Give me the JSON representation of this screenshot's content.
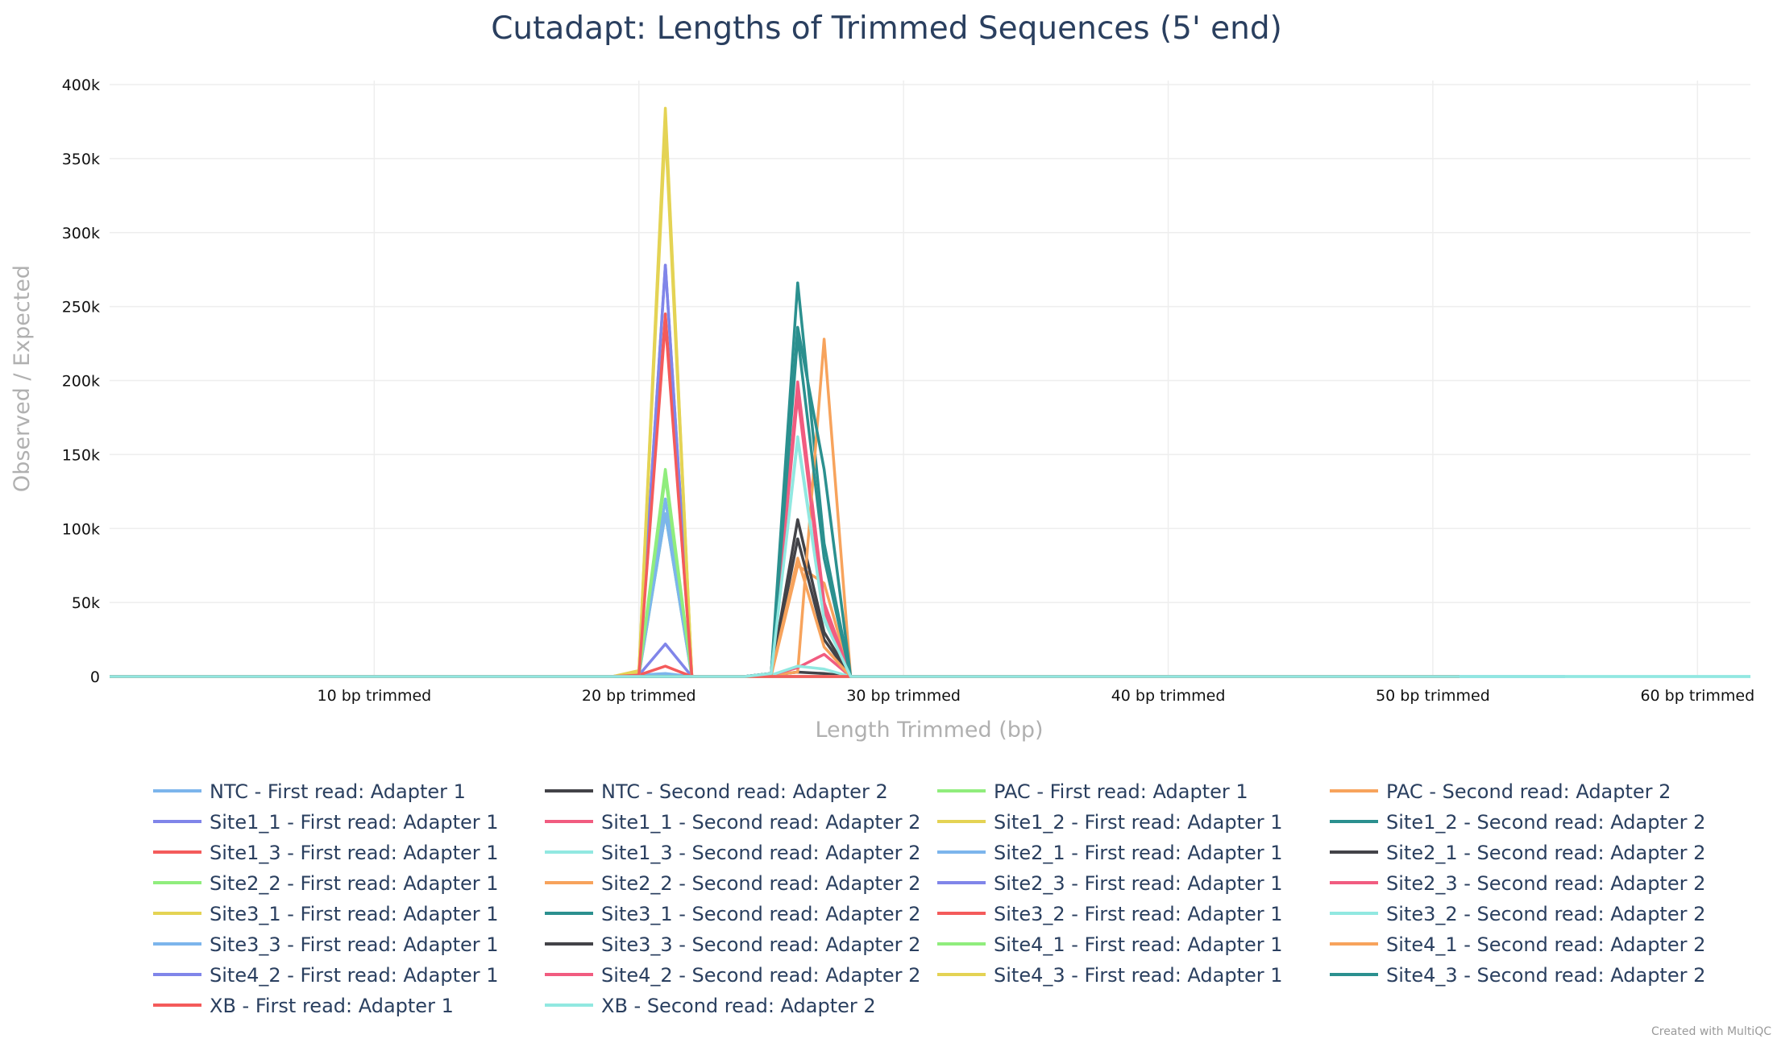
{
  "chart_data": {
    "type": "line",
    "title": "Cutadapt: Lengths of Trimmed Sequences (5' end)",
    "xlabel": "Length Trimmed (bp)",
    "ylabel": "Observed / Expected",
    "xlim": [
      0,
      62
    ],
    "ylim": [
      0,
      400000
    ],
    "x_ticks": [
      10,
      20,
      30,
      40,
      50,
      60
    ],
    "x_tick_labels": [
      "10 bp trimmed",
      "20 bp trimmed",
      "30 bp trimmed",
      "40 bp trimmed",
      "50 bp trimmed",
      "60 bp trimmed"
    ],
    "y_ticks": [
      0,
      50000,
      100000,
      150000,
      200000,
      250000,
      300000,
      350000,
      400000
    ],
    "y_tick_labels": [
      "0",
      "50k",
      "100k",
      "150k",
      "200k",
      "250k",
      "300k",
      "350k",
      "400k"
    ],
    "grid": true,
    "legend_position": "bottom",
    "credit": "Created with MultiQC",
    "series": [
      {
        "name": "NTC - First read: Adapter 1",
        "color": "#7cb5ec",
        "points": [
          [
            0,
            0
          ],
          [
            19,
            0
          ],
          [
            20,
            1000
          ],
          [
            21,
            2000
          ],
          [
            22,
            0
          ],
          [
            51,
            0
          ]
        ]
      },
      {
        "name": "NTC - Second read: Adapter 2",
        "color": "#434348",
        "points": [
          [
            0,
            0
          ],
          [
            24,
            0
          ],
          [
            25,
            1000
          ],
          [
            26,
            3000
          ],
          [
            27,
            2000
          ],
          [
            28,
            0
          ],
          [
            51,
            0
          ]
        ]
      },
      {
        "name": "PAC - First read: Adapter 1",
        "color": "#90ed7d",
        "points": [
          [
            0,
            0
          ],
          [
            19,
            0
          ],
          [
            20,
            2000
          ],
          [
            21,
            140000
          ],
          [
            22,
            0
          ],
          [
            51,
            0
          ]
        ]
      },
      {
        "name": "PAC - Second read: Adapter 2",
        "color": "#f7a35c",
        "points": [
          [
            0,
            0
          ],
          [
            24,
            0
          ],
          [
            25,
            1000
          ],
          [
            26,
            75000
          ],
          [
            27,
            63000
          ],
          [
            28,
            0
          ],
          [
            51,
            0
          ]
        ]
      },
      {
        "name": "Site1_1 - First read: Adapter 1",
        "color": "#8085e9",
        "points": [
          [
            0,
            0
          ],
          [
            19,
            0
          ],
          [
            20,
            2000
          ],
          [
            21,
            278000
          ],
          [
            22,
            0
          ],
          [
            51,
            0
          ]
        ]
      },
      {
        "name": "Site1_1 - Second read: Adapter 2",
        "color": "#f15c80",
        "points": [
          [
            0,
            0
          ],
          [
            24,
            0
          ],
          [
            25,
            2000
          ],
          [
            26,
            199000
          ],
          [
            27,
            50000
          ],
          [
            28,
            0
          ],
          [
            51,
            0
          ]
        ]
      },
      {
        "name": "Site1_2 - First read: Adapter 1",
        "color": "#e4d354",
        "points": [
          [
            0,
            0
          ],
          [
            19,
            0
          ],
          [
            20,
            4000
          ],
          [
            21,
            384000
          ],
          [
            22,
            0
          ],
          [
            51,
            0
          ]
        ]
      },
      {
        "name": "Site1_2 - Second read: Adapter 2",
        "color": "#2b908f",
        "points": [
          [
            0,
            0
          ],
          [
            24,
            0
          ],
          [
            25,
            2000
          ],
          [
            26,
            266000
          ],
          [
            27,
            90000
          ],
          [
            28,
            0
          ],
          [
            51,
            0
          ]
        ]
      },
      {
        "name": "Site1_3 - First read: Adapter 1",
        "color": "#f45b5b",
        "points": [
          [
            0,
            0
          ],
          [
            19,
            0
          ],
          [
            20,
            2000
          ],
          [
            21,
            245000
          ],
          [
            22,
            0
          ],
          [
            51,
            0
          ]
        ]
      },
      {
        "name": "Site1_3 - Second read: Adapter 2",
        "color": "#91e8e1",
        "points": [
          [
            0,
            0
          ],
          [
            24,
            0
          ],
          [
            25,
            2000
          ],
          [
            26,
            162000
          ],
          [
            27,
            40000
          ],
          [
            28,
            0
          ],
          [
            51,
            0
          ]
        ]
      },
      {
        "name": "Site2_1 - First read: Adapter 1",
        "color": "#7cb5ec",
        "points": [
          [
            0,
            0
          ],
          [
            19,
            0
          ],
          [
            20,
            1000
          ],
          [
            21,
            120000
          ],
          [
            22,
            0
          ],
          [
            51,
            0
          ]
        ]
      },
      {
        "name": "Site2_1 - Second read: Adapter 2",
        "color": "#434348",
        "points": [
          [
            0,
            0
          ],
          [
            24,
            0
          ],
          [
            25,
            2000
          ],
          [
            26,
            106000
          ],
          [
            27,
            30000
          ],
          [
            28,
            0
          ],
          [
            51,
            0
          ]
        ]
      },
      {
        "name": "Site2_2 - First read: Adapter 1",
        "color": "#90ed7d",
        "points": [
          [
            0,
            0
          ],
          [
            19,
            0
          ],
          [
            20,
            1000
          ],
          [
            21,
            110000
          ],
          [
            22,
            0
          ],
          [
            51,
            0
          ]
        ]
      },
      {
        "name": "Site2_2 - Second read: Adapter 2",
        "color": "#f7a35c",
        "points": [
          [
            0,
            0
          ],
          [
            24,
            0
          ],
          [
            25,
            1000
          ],
          [
            26,
            3000
          ],
          [
            27,
            228000
          ],
          [
            28,
            0
          ],
          [
            51,
            0
          ]
        ]
      },
      {
        "name": "Site2_3 - First read: Adapter 1",
        "color": "#8085e9",
        "points": [
          [
            0,
            0
          ],
          [
            19,
            0
          ],
          [
            20,
            1000
          ],
          [
            21,
            22000
          ],
          [
            22,
            0
          ],
          [
            51,
            0
          ]
        ]
      },
      {
        "name": "Site2_3 - Second read: Adapter 2",
        "color": "#f15c80",
        "points": [
          [
            0,
            0
          ],
          [
            24,
            0
          ],
          [
            25,
            1000
          ],
          [
            26,
            6000
          ],
          [
            27,
            15000
          ],
          [
            28,
            0
          ],
          [
            51,
            0
          ]
        ]
      },
      {
        "name": "Site3_1 - First read: Adapter 1",
        "color": "#e4d354",
        "points": [
          [
            0,
            0
          ],
          [
            19,
            0
          ],
          [
            20,
            3000
          ],
          [
            21,
            380000
          ],
          [
            22,
            0
          ],
          [
            51,
            0
          ]
        ]
      },
      {
        "name": "Site3_1 - Second read: Adapter 2",
        "color": "#2b908f",
        "points": [
          [
            0,
            0
          ],
          [
            24,
            0
          ],
          [
            25,
            2000
          ],
          [
            26,
            236000
          ],
          [
            27,
            140000
          ],
          [
            28,
            0
          ],
          [
            51,
            0
          ]
        ]
      },
      {
        "name": "Site3_2 - First read: Adapter 1",
        "color": "#f45b5b",
        "points": [
          [
            0,
            0
          ],
          [
            19,
            0
          ],
          [
            20,
            1000
          ],
          [
            21,
            7000
          ],
          [
            22,
            0
          ],
          [
            51,
            0
          ]
        ]
      },
      {
        "name": "Site3_2 - Second read: Adapter 2",
        "color": "#91e8e1",
        "points": [
          [
            0,
            0
          ],
          [
            24,
            0
          ],
          [
            25,
            1000
          ],
          [
            26,
            7000
          ],
          [
            27,
            5000
          ],
          [
            28,
            0
          ],
          [
            61,
            0
          ],
          [
            62,
            0
          ]
        ]
      },
      {
        "name": "Site3_3 - First read: Adapter 1",
        "color": "#7cb5ec",
        "points": [
          [
            0,
            0
          ],
          [
            19,
            0
          ],
          [
            20,
            1000
          ],
          [
            21,
            110000
          ],
          [
            22,
            0
          ],
          [
            55,
            0
          ]
        ]
      },
      {
        "name": "Site3_3 - Second read: Adapter 2",
        "color": "#434348",
        "points": [
          [
            0,
            0
          ],
          [
            24,
            0
          ],
          [
            25,
            2000
          ],
          [
            26,
            93000
          ],
          [
            27,
            25000
          ],
          [
            28,
            0
          ],
          [
            51,
            0
          ]
        ]
      },
      {
        "name": "Site4_1 - First read: Adapter 1",
        "color": "#90ed7d",
        "points": [
          [
            0,
            0
          ],
          [
            19,
            0
          ],
          [
            20,
            1000
          ],
          [
            21,
            135000
          ],
          [
            22,
            0
          ],
          [
            51,
            0
          ]
        ]
      },
      {
        "name": "Site4_1 - Second read: Adapter 2",
        "color": "#f7a35c",
        "points": [
          [
            0,
            0
          ],
          [
            24,
            0
          ],
          [
            25,
            1000
          ],
          [
            26,
            80000
          ],
          [
            27,
            20000
          ],
          [
            28,
            0
          ],
          [
            51,
            0
          ]
        ]
      },
      {
        "name": "Site4_2 - First read: Adapter 1",
        "color": "#8085e9",
        "points": [
          [
            0,
            0
          ],
          [
            19,
            0
          ],
          [
            20,
            2000
          ],
          [
            21,
            278000
          ],
          [
            22,
            0
          ],
          [
            51,
            0
          ]
        ]
      },
      {
        "name": "Site4_2 - Second read: Adapter 2",
        "color": "#f15c80",
        "points": [
          [
            0,
            0
          ],
          [
            24,
            0
          ],
          [
            25,
            2000
          ],
          [
            26,
            190000
          ],
          [
            27,
            45000
          ],
          [
            28,
            0
          ],
          [
            51,
            0
          ]
        ]
      },
      {
        "name": "Site4_3 - First read: Adapter 1",
        "color": "#e4d354",
        "points": [
          [
            0,
            0
          ],
          [
            19,
            0
          ],
          [
            20,
            3000
          ],
          [
            21,
            370000
          ],
          [
            22,
            0
          ],
          [
            51,
            0
          ]
        ]
      },
      {
        "name": "Site4_3 - Second read: Adapter 2",
        "color": "#2b908f",
        "points": [
          [
            0,
            0
          ],
          [
            24,
            0
          ],
          [
            25,
            2000
          ],
          [
            26,
            230000
          ],
          [
            27,
            80000
          ],
          [
            28,
            0
          ],
          [
            51,
            0
          ]
        ]
      },
      {
        "name": "XB - First read: Adapter 1",
        "color": "#f45b5b",
        "points": [
          [
            0,
            0
          ],
          [
            19,
            0
          ],
          [
            20,
            1000
          ],
          [
            21,
            240000
          ],
          [
            22,
            0
          ],
          [
            51,
            0
          ]
        ]
      },
      {
        "name": "XB - Second read: Adapter 2",
        "color": "#91e8e1",
        "points": [
          [
            0,
            0
          ],
          [
            24,
            0
          ],
          [
            25,
            2000
          ],
          [
            26,
            160000
          ],
          [
            27,
            38000
          ],
          [
            28,
            0
          ],
          [
            62,
            0
          ]
        ]
      }
    ]
  }
}
